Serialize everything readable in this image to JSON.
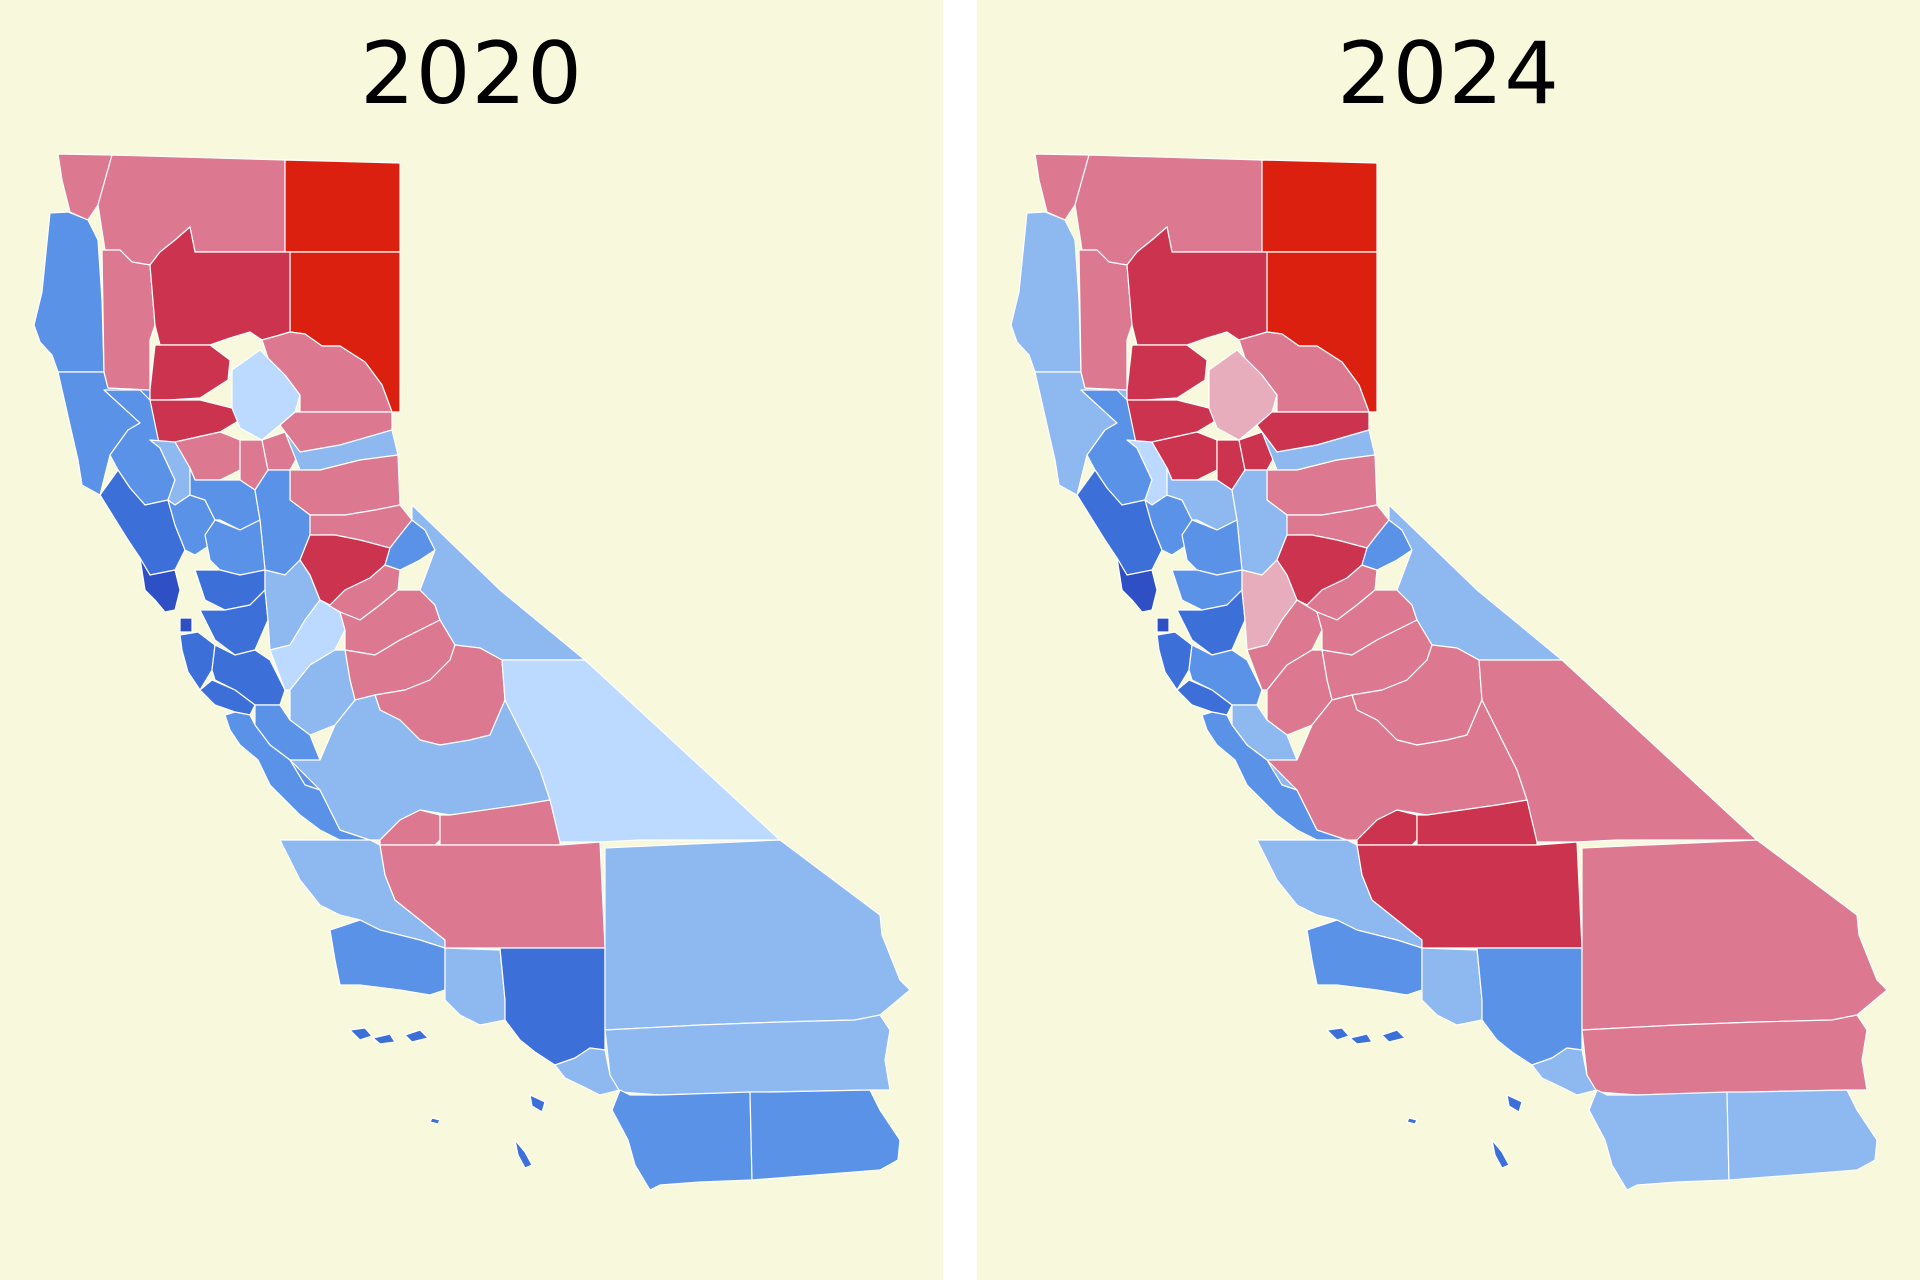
{
  "colors": {
    "panel_background": "#f8f9dc",
    "divider": "#ffffff",
    "title_text": "#000000",
    "county_border": "#ffffff",
    "scale": {
      "dem_darkest": "#2f4fc4",
      "dem_strong": "#3d6fd9",
      "dem_medium": "#5a92e8",
      "dem_light": "#8db8f0",
      "dem_faint": "#bcd9ff",
      "rep_faint": "#e8adbd",
      "rep_light": "#dc7890",
      "rep_medium": "#cc334f",
      "rep_strong": "#dc2010"
    }
  },
  "panels": [
    {
      "title": "2020",
      "palette": {
        "northwest_coast": "#dc7890",
        "north_inland": "#dc7890",
        "far_northeast": "#dc2010",
        "northeast": "#dc2010",
        "del_norte": "#5a92e8",
        "humboldt": "#5a92e8",
        "trinity": "#dc7890",
        "shasta": "#cc334f",
        "tehama": "#cc334f",
        "glenn": "#cc334f",
        "butte": "#bcd9ff",
        "plumas": "#dc7890",
        "mendocino": "#5a92e8",
        "lake": "#8db8f0",
        "colusa": "#dc7890",
        "sutter": "#dc7890",
        "yuba": "#dc7890",
        "sierra": "#dc7890",
        "nevada": "#8db8f0",
        "placer": "#dc7890",
        "el_dorado": "#dc7890",
        "sonoma": "#3d6fd9",
        "napa": "#5a92e8",
        "yolo": "#5a92e8",
        "sacramento": "#5a92e8",
        "solano": "#5a92e8",
        "marin": "#2f4fc4",
        "contra_costa": "#3d6fd9",
        "alameda": "#3d6fd9",
        "san_francisco": "#2f4fc4",
        "san_mateo": "#3d6fd9",
        "santa_clara": "#3d6fd9",
        "san_joaquin": "#8db8f0",
        "stanislaus": "#bcd9ff",
        "amador": "#cc334f",
        "calaveras": "#dc7890",
        "tuolumne": "#dc7890",
        "alpine": "#5a92e8",
        "mono": "#8db8f0",
        "mariposa": "#dc7890",
        "merced": "#8db8f0",
        "madera": "#dc7890",
        "santa_cruz": "#3d6fd9",
        "san_benito": "#5a92e8",
        "monterey": "#5a92e8",
        "fresno": "#8db8f0",
        "inyo": "#bcd9ff",
        "kings": "#dc7890",
        "tulare": "#dc7890",
        "san_luis_obispo": "#8db8f0",
        "kern": "#dc7890",
        "santa_barbara": "#5a92e8",
        "ventura": "#8db8f0",
        "los_angeles": "#3d6fd9",
        "san_bernardino": "#8db8f0",
        "orange": "#8db8f0",
        "riverside": "#8db8f0",
        "san_diego": "#5a92e8",
        "imperial": "#5a92e8",
        "islands": "#3d6fd9"
      }
    },
    {
      "title": "2024",
      "palette": {
        "northwest_coast": "#dc7890",
        "north_inland": "#dc7890",
        "far_northeast": "#dc2010",
        "northeast": "#dc2010",
        "del_norte": "#8db8f0",
        "humboldt": "#8db8f0",
        "trinity": "#dc7890",
        "shasta": "#cc334f",
        "tehama": "#cc334f",
        "glenn": "#cc334f",
        "butte": "#e8adbd",
        "plumas": "#dc7890",
        "mendocino": "#5a92e8",
        "lake": "#bcd9ff",
        "colusa": "#cc334f",
        "sutter": "#cc334f",
        "yuba": "#cc334f",
        "sierra": "#cc334f",
        "nevada": "#8db8f0",
        "placer": "#dc7890",
        "el_dorado": "#dc7890",
        "sonoma": "#3d6fd9",
        "napa": "#5a92e8",
        "yolo": "#8db8f0",
        "sacramento": "#8db8f0",
        "solano": "#5a92e8",
        "marin": "#2f4fc4",
        "contra_costa": "#5a92e8",
        "alameda": "#3d6fd9",
        "san_francisco": "#2f4fc4",
        "san_mateo": "#3d6fd9",
        "santa_clara": "#5a92e8",
        "san_joaquin": "#e8adbd",
        "stanislaus": "#dc7890",
        "amador": "#cc334f",
        "calaveras": "#dc7890",
        "tuolumne": "#dc7890",
        "alpine": "#5a92e8",
        "mono": "#8db8f0",
        "mariposa": "#dc7890",
        "merced": "#dc7890",
        "madera": "#dc7890",
        "santa_cruz": "#3d6fd9",
        "san_benito": "#8db8f0",
        "monterey": "#5a92e8",
        "fresno": "#dc7890",
        "inyo": "#dc7890",
        "kings": "#cc334f",
        "tulare": "#cc334f",
        "san_luis_obispo": "#8db8f0",
        "kern": "#cc334f",
        "santa_barbara": "#5a92e8",
        "ventura": "#8db8f0",
        "los_angeles": "#5a92e8",
        "san_bernardino": "#dc7890",
        "orange": "#8db8f0",
        "riverside": "#dc7890",
        "san_diego": "#8db8f0",
        "imperial": "#8db8f0",
        "islands": "#3d6fd9"
      }
    }
  ]
}
